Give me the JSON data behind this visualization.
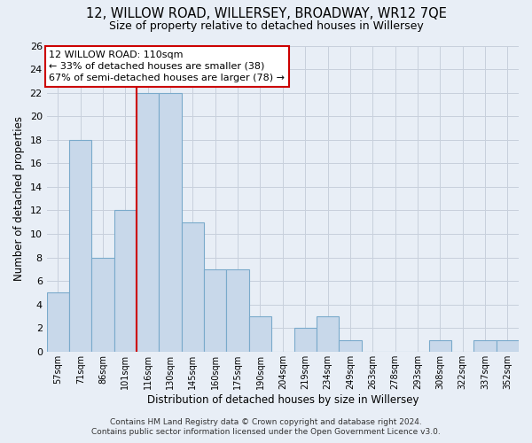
{
  "title": "12, WILLOW ROAD, WILLERSEY, BROADWAY, WR12 7QE",
  "subtitle": "Size of property relative to detached houses in Willersey",
  "xlabel": "Distribution of detached houses by size in Willersey",
  "ylabel": "Number of detached properties",
  "bar_labels": [
    "57sqm",
    "71sqm",
    "86sqm",
    "101sqm",
    "116sqm",
    "130sqm",
    "145sqm",
    "160sqm",
    "175sqm",
    "190sqm",
    "204sqm",
    "219sqm",
    "234sqm",
    "249sqm",
    "263sqm",
    "278sqm",
    "293sqm",
    "308sqm",
    "322sqm",
    "337sqm",
    "352sqm"
  ],
  "bar_values": [
    5,
    18,
    8,
    12,
    22,
    22,
    11,
    7,
    7,
    3,
    0,
    2,
    3,
    1,
    0,
    0,
    0,
    1,
    0,
    1,
    1
  ],
  "bar_color": "#c8d8ea",
  "bar_edgecolor": "#7aaacb",
  "vline_color": "#cc0000",
  "ylim": [
    0,
    26
  ],
  "yticks": [
    0,
    2,
    4,
    6,
    8,
    10,
    12,
    14,
    16,
    18,
    20,
    22,
    24,
    26
  ],
  "annotation_text": "12 WILLOW ROAD: 110sqm\n← 33% of detached houses are smaller (38)\n67% of semi-detached houses are larger (78) →",
  "annotation_box_color": "white",
  "annotation_box_edgecolor": "#cc0000",
  "footer_line1": "Contains HM Land Registry data © Crown copyright and database right 2024.",
  "footer_line2": "Contains public sector information licensed under the Open Government Licence v3.0.",
  "grid_color": "#c8d0dc",
  "background_color": "#e8eef6"
}
